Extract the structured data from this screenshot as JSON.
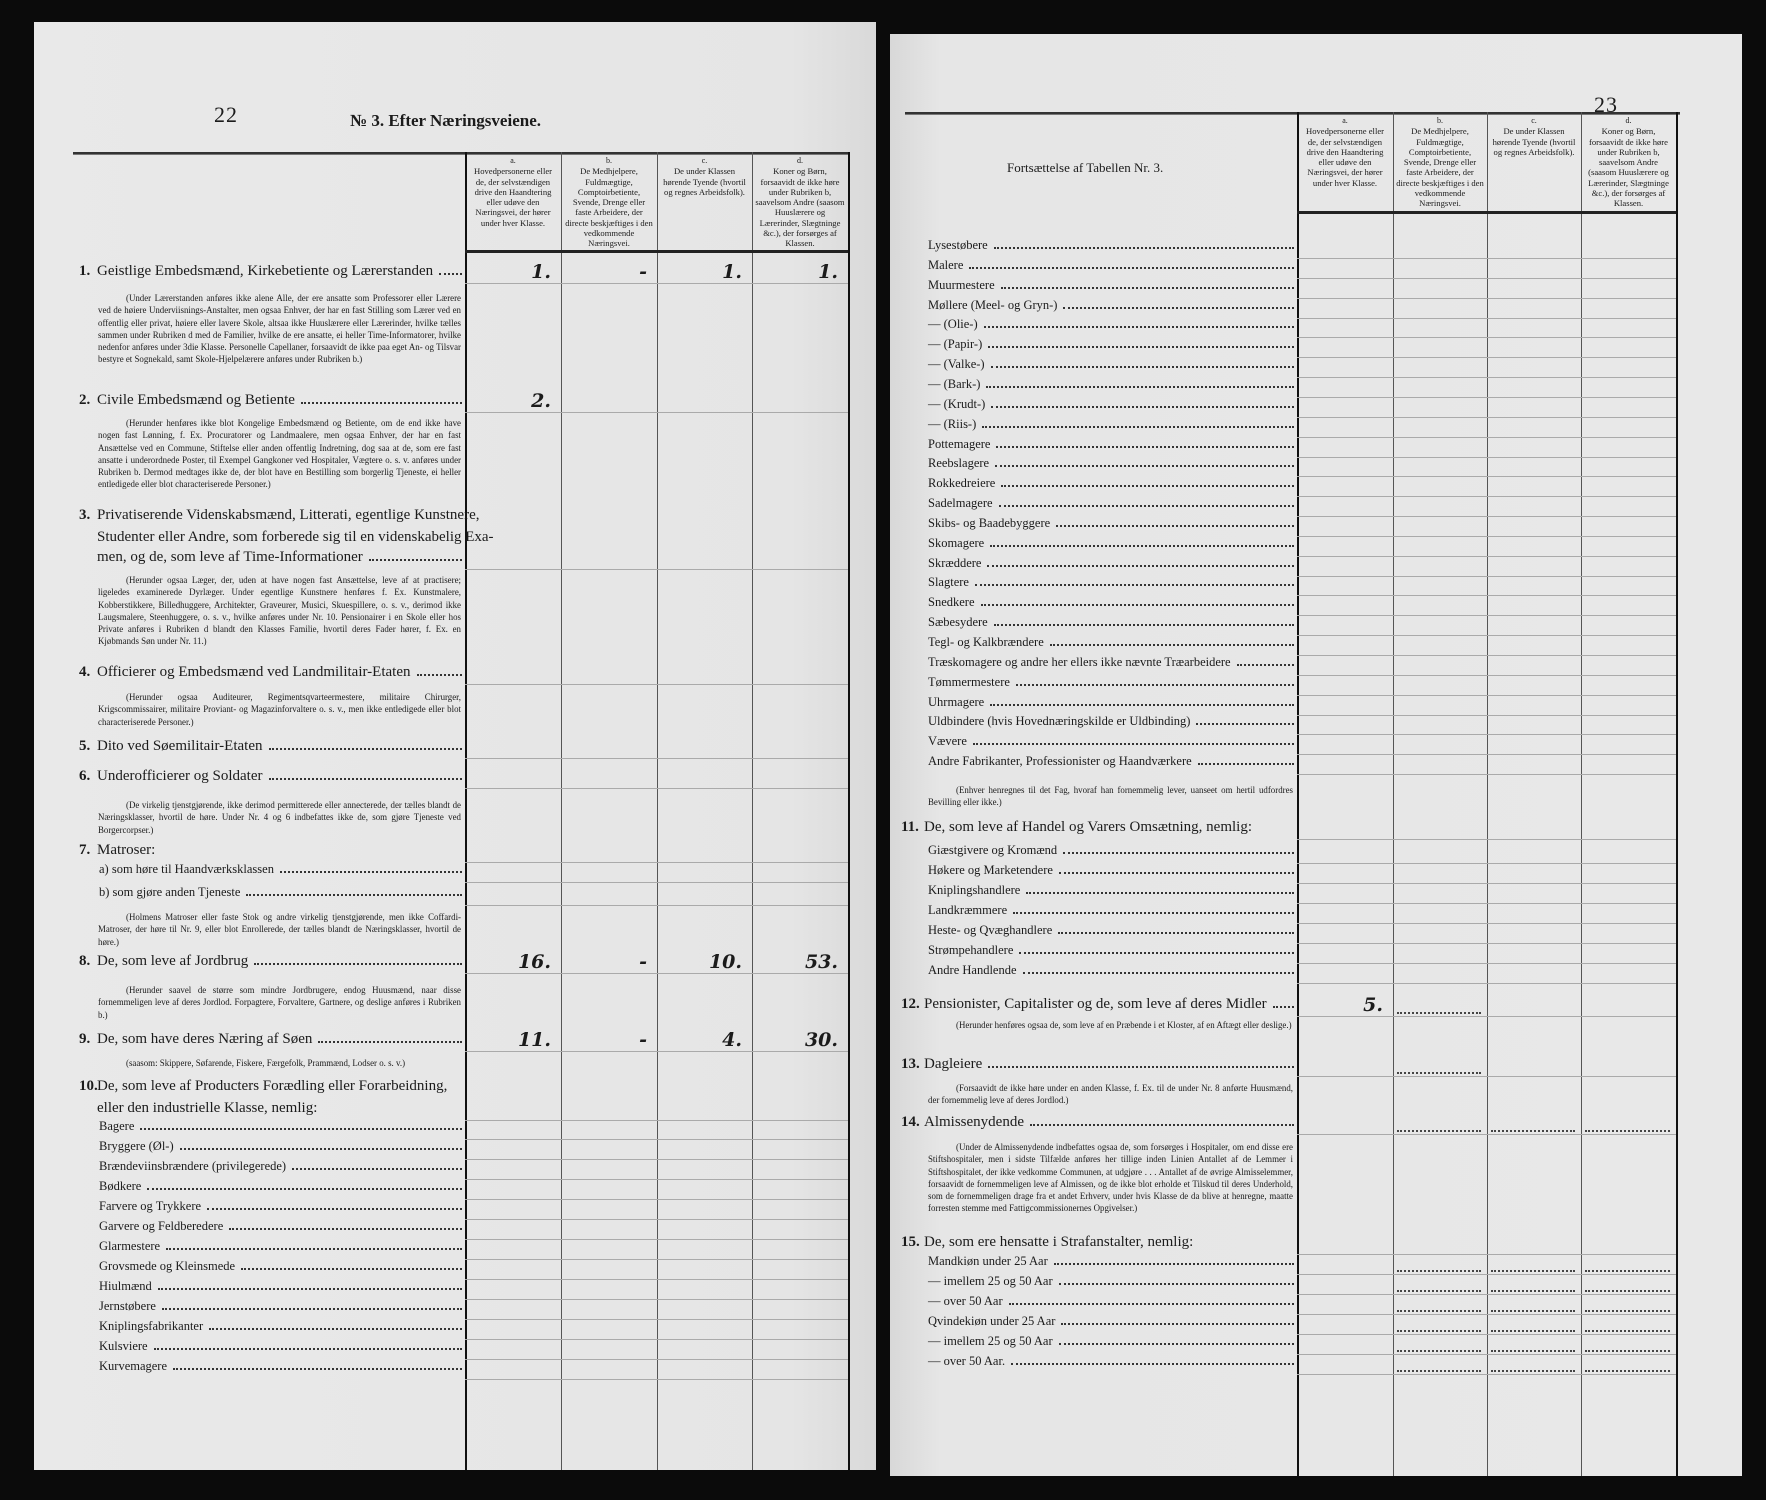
{
  "column_headers": [
    {
      "letter": "a.",
      "text": "Hovedpersonerne eller de, der selvstændigen drive den Haandtering eller udøve den Næringsvei, der hører under hver Klasse."
    },
    {
      "letter": "b.",
      "text": "De Medhjelpere, Fuldmægtige, Comptoirbetiente, Svende, Drenge eller faste Arbeidere, der directe beskjæftiges i den vedkommende Næringsvei."
    },
    {
      "letter": "c.",
      "text": "De under Klassen hørende Tyende (hvortil og regnes Arbeidsfolk)."
    },
    {
      "letter": "d.",
      "text": "Koner og Børn, forsaavidt de ikke høre under Rubriken b, saavelsom Andre (saasom Huuslærere og Lærerinder, Slægtninge &c.), der forsørges af Klassen."
    }
  ],
  "left": {
    "page_number": "22",
    "title": "№ 3. Efter Næringsveiene.",
    "entries": [
      {
        "kind": "head",
        "num": "1.",
        "lines": [
          "Geistlige Embedsmænd, Kirkebetiente og Lærerstanden"
        ],
        "values": [
          "1.",
          "-",
          "1.",
          "1."
        ]
      },
      {
        "kind": "note",
        "text": "(Under Lærerstanden anføres ikke alene Alle, der ere ansatte som Professorer eller Lærere ved de høiere Underviisnings-Anstalter, men ogsaa Enhver, der har en fast Stilling som Lærer ved en offentlig eller privat, høiere eller lavere Skole, altsaa ikke Huuslærere eller Lærerinder, hvilke tælles sammen under Rubriken d med de Familier, hvilke de ere ansatte, ei heller Time-Informatorer, hvilke nedenfor anføres under 3die Klasse. Personelle Capellaner, forsaavidt de ikke paa eget An- og Tilsvar bestyre et Sognekald, samt Skole-Hjelpelærere anføres under Rubriken b.)"
      },
      {
        "kind": "head",
        "num": "2.",
        "lines": [
          "Civile Embedsmænd og Betiente"
        ],
        "values": [
          "2.",
          "",
          "",
          ""
        ]
      },
      {
        "kind": "note",
        "text": "(Herunder henføres ikke blot Kongelige Embedsmænd og Betiente, om de end ikke have nogen fast Lønning, f. Ex. Procuratorer og Landmaalere, men ogsaa Enhver, der har en fast Ansættelse ved en Commune, Stiftelse eller anden offentlig Indretning, dog saa at de, som ere fast ansatte i underordnede Poster, til Exempel Gangkoner ved Hospitaler, Vægtere o. s. v. anføres under Rubriken b. Dermod medtages ikke de, der blot have en Bestilling som borgerlig Tjeneste, ei heller entledigede eller blot characteriserede Personer.)"
      },
      {
        "kind": "head",
        "num": "3.",
        "lines": [
          "Privatiserende Videnskabsmænd, Litterati, egentlige Kunstnere,",
          "Studenter eller Andre, som forberede sig til en videnskabelig Exa-",
          "men, og de, som leve af Time-Informationer"
        ]
      },
      {
        "kind": "note",
        "text": "(Herunder ogsaa Læger, der, uden at have nogen fast Ansættelse, leve af at practisere; ligeledes examinerede Dyrlæger. Under egentlige Kunstnere henføres f. Ex. Kunstmalere, Kobberstikkere, Billedhuggere, Architekter, Graveurer, Musici, Skuespillere, o. s. v., derimod ikke Laugsmalere, Steenhuggere, o. s. v., hvilke anføres under Nr. 10. Pensionairer i en Skole eller hos Private anføres i Rubriken d blandt den Klasses Familie, hvortil deres Fader hører, f. Ex. en Kjøbmands Søn under Nr. 11.)"
      },
      {
        "kind": "head",
        "num": "4.",
        "lines": [
          "Officierer og Embedsmænd ved Landmilitair-Etaten"
        ]
      },
      {
        "kind": "note",
        "text": "(Herunder ogsaa Auditeurer, Regimentsqvarteermestere, militaire Chirurger, Krigscommissairer, militaire Proviant- og Magazinforvaltere o. s. v., men ikke entledigede eller blot characteriserede Personer.)"
      },
      {
        "kind": "head",
        "num": "5.",
        "lines": [
          "Dito ved Søemilitair-Etaten"
        ]
      },
      {
        "kind": "head",
        "num": "6.",
        "lines": [
          "Underofficierer og Soldater"
        ]
      },
      {
        "kind": "note",
        "text": "(De virkelig tjenstgjørende, ikke derimod permitterede eller annecterede, der tælles blandt de Næringsklasser, hvortil de høre. Under Nr. 4 og 6 indbefattes ikke de, som gjøre Tjeneste ved Borgercorpser.)"
      },
      {
        "kind": "head",
        "num": "7.",
        "lines": [
          "Matroser:"
        ]
      },
      {
        "kind": "item",
        "text": "a) som høre til Haandværksklassen"
      },
      {
        "kind": "item",
        "text": "b) som gjøre anden Tjeneste"
      },
      {
        "kind": "note",
        "text": "(Holmens Matroser eller faste Stok og andre virkelig tjenstgjørende, men ikke Coffardi-Matroser, der høre til Nr. 9, eller blot Enrollerede, der tælles blandt de Næringsklasser, hvortil de høre.)"
      },
      {
        "kind": "head",
        "num": "8.",
        "lines": [
          "De, som leve af Jordbrug"
        ],
        "values": [
          "16.",
          "-",
          "10.",
          "53."
        ]
      },
      {
        "kind": "note",
        "text": "(Herunder saavel de større som mindre Jordbrugere, endog Huusmænd, naar disse fornemmeligen leve af deres Jordlod. Forpagtere, Forvaltere, Gartnere, og deslige anføres i Rubriken b.)"
      },
      {
        "kind": "head",
        "num": "9.",
        "lines": [
          "De, som have deres Næring af Søen"
        ],
        "values": [
          "11.",
          "-",
          "4.",
          "30."
        ]
      },
      {
        "kind": "note",
        "text": "(saasom: Skippere, Søfarende, Fiskere, Færgefolk, Prammænd, Lodser o. s. v.)"
      },
      {
        "kind": "head",
        "num": "10.",
        "lines": [
          "De, som leve af Producters Forædling eller Forarbeidning,",
          "eller den industrielle Klasse, nemlig:"
        ]
      },
      {
        "kind": "item",
        "text": "Bagere"
      },
      {
        "kind": "item",
        "text": "Bryggere (Øl-)"
      },
      {
        "kind": "item",
        "text": "Brændeviinsbrændere (privilegerede)"
      },
      {
        "kind": "item",
        "text": "Bødkere"
      },
      {
        "kind": "item",
        "text": "Farvere og Trykkere"
      },
      {
        "kind": "item",
        "text": "Garvere og Feldberedere"
      },
      {
        "kind": "item",
        "text": "Glarmestere"
      },
      {
        "kind": "item",
        "text": "Grovsmede og Kleinsmede"
      },
      {
        "kind": "item",
        "text": "Hiulmænd"
      },
      {
        "kind": "item",
        "text": "Jernstøbere"
      },
      {
        "kind": "item",
        "text": "Kniplingsfabrikanter"
      },
      {
        "kind": "item",
        "text": "Kulsviere"
      },
      {
        "kind": "item",
        "text": "Kurvemagere"
      }
    ]
  },
  "right": {
    "page_number": "23",
    "subtitle": "Fortsættelse af Tabellen Nr. 3.",
    "entries": [
      {
        "kind": "item",
        "text": "Lysestøbere"
      },
      {
        "kind": "item",
        "text": "Malere"
      },
      {
        "kind": "item",
        "text": "Muurmestere"
      },
      {
        "kind": "item",
        "text": "Møllere (Meel- og Gryn-)"
      },
      {
        "kind": "item",
        "text": "—  (Olie-)"
      },
      {
        "kind": "item",
        "text": "—  (Papir-)"
      },
      {
        "kind": "item",
        "text": "—  (Valke-)"
      },
      {
        "kind": "item",
        "text": "—  (Bark-)"
      },
      {
        "kind": "item",
        "text": "—  (Krudt-)"
      },
      {
        "kind": "item",
        "text": "—  (Riis-)"
      },
      {
        "kind": "item",
        "text": "Pottemagere"
      },
      {
        "kind": "item",
        "text": "Reebslagere"
      },
      {
        "kind": "item",
        "text": "Rokkedreiere"
      },
      {
        "kind": "item",
        "text": "Sadelmagere"
      },
      {
        "kind": "item",
        "text": "Skibs- og Baadebyggere"
      },
      {
        "kind": "item",
        "text": "Skomagere"
      },
      {
        "kind": "item",
        "text": "Skræddere"
      },
      {
        "kind": "item",
        "text": "Slagtere"
      },
      {
        "kind": "item",
        "text": "Snedkere"
      },
      {
        "kind": "item",
        "text": "Sæbesydere"
      },
      {
        "kind": "item",
        "text": "Tegl- og Kalkbrændere"
      },
      {
        "kind": "item",
        "text": "Træskomagere og andre her ellers ikke nævnte Træarbeidere"
      },
      {
        "kind": "item",
        "text": "Tømmermestere"
      },
      {
        "kind": "item",
        "text": "Uhrmagere"
      },
      {
        "kind": "item",
        "text": "Uldbindere (hvis Hovednæringskilde er Uldbinding)"
      },
      {
        "kind": "item",
        "text": "Vævere"
      },
      {
        "kind": "item",
        "text": "Andre Fabrikanter, Professionister og Haandværkere"
      },
      {
        "kind": "note",
        "text": "(Enhver henregnes til det Fag, hvoraf han fornemmelig lever, uanseet om hertil udfordres Bevilling eller ikke.)"
      },
      {
        "kind": "head",
        "num": "11.",
        "lines": [
          "De, som leve af Handel og Varers Omsætning, nemlig:"
        ]
      },
      {
        "kind": "item",
        "text": "Giæstgivere og Kromænd"
      },
      {
        "kind": "item",
        "text": "Høkere og Marketendere"
      },
      {
        "kind": "item",
        "text": "Kniplingshandlere"
      },
      {
        "kind": "item",
        "text": "Landkræmmere"
      },
      {
        "kind": "item",
        "text": "Heste- og Qvæghandlere"
      },
      {
        "kind": "item",
        "text": "Strømpehandlere"
      },
      {
        "kind": "item",
        "text": "Andre Handlende"
      },
      {
        "kind": "head",
        "num": "12.",
        "lines": [
          "Pensionister, Capitalister og de, som leve af deres Midler"
        ],
        "values": [
          "5.",
          "",
          "",
          ""
        ]
      },
      {
        "kind": "note",
        "text": "(Herunder henføres ogsaa de, som leve af en Præbende i et Kloster, af en Aftægt eller deslige.)"
      },
      {
        "kind": "head",
        "num": "13.",
        "lines": [
          "Dagleiere"
        ]
      },
      {
        "kind": "note",
        "text": "(Forsaavidt de ikke høre under en anden Klasse, f. Ex. til de under Nr. 8 anførte Huusmænd, der fornemmelig leve af deres Jordlod.)"
      },
      {
        "kind": "head",
        "num": "14.",
        "lines": [
          "Almissenydende"
        ]
      },
      {
        "kind": "note",
        "text": "(Under de Almissenydende indbefattes ogsaa de, som forsørges i Hospitaler, om end disse ere Stiftshospitaler, men i sidste Tilfælde anføres her tillige inden Linien Antallet af de Lemmer i Stiftshospitalet, der ikke vedkomme Communen, at udgjøre . . . Antallet af de øvrige Almisselemmer, forsaavidt de fornemmeligen leve af Almissen, og de ikke blot erholde et Tilskud til deres Underhold, som de fornemmeligen drage fra et andet Erhverv, under hvis Klasse de da blive at henregne, maatte forresten stemme med Fattigcommissionernes Opgivelser.)"
      },
      {
        "kind": "head",
        "num": "15.",
        "lines": [
          "De, som ere hensatte i Strafanstalter, nemlig:"
        ]
      },
      {
        "kind": "item",
        "text": "Mandkiøn under 25 Aar"
      },
      {
        "kind": "item",
        "text": "—   imellem 25 og 50 Aar"
      },
      {
        "kind": "item",
        "text": "—   over 50 Aar"
      },
      {
        "kind": "item",
        "text": "Qvindekiøn under 25 Aar"
      },
      {
        "kind": "item",
        "text": "—   imellem 25 og 50 Aar"
      },
      {
        "kind": "item",
        "text": "—   over 50 Aar."
      }
    ]
  }
}
